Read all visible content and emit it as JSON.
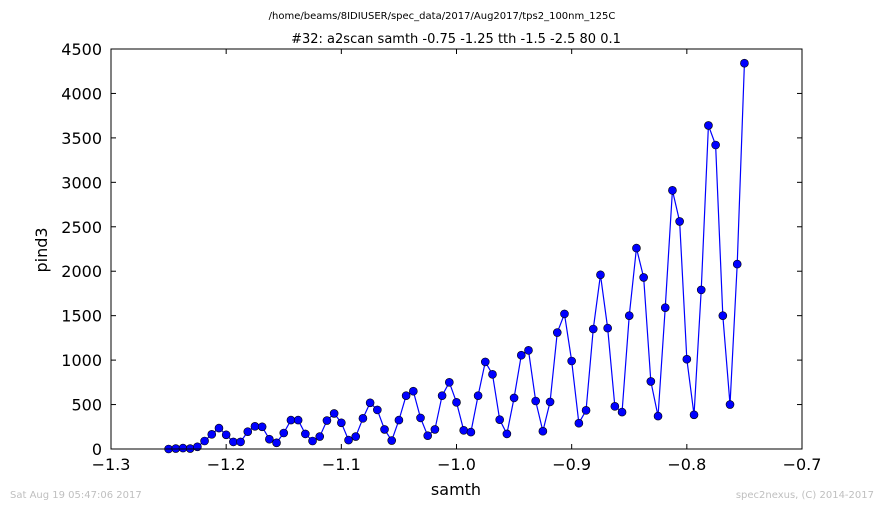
{
  "chart_data": {
    "type": "line",
    "suptitle": "/home/beams/8IDIUSER/spec_data/2017/Aug2017/tps2_100nm_125C",
    "title": "#32: a2scan  samth -0.75 -1.25  tth -1.5 -2.5  80 0.1",
    "xlabel": "samth",
    "ylabel": "pind3",
    "xlim": [
      -1.3,
      -0.7
    ],
    "ylim": [
      0,
      4500
    ],
    "xticks": [
      -1.3,
      -1.2,
      -1.1,
      -1.0,
      -0.9,
      -0.8,
      -0.7
    ],
    "xtick_labels": [
      "−1.3",
      "−1.2",
      "−1.1",
      "−1.0",
      "−0.9",
      "−0.8",
      "−0.7"
    ],
    "yticks": [
      0,
      500,
      1000,
      1500,
      2000,
      2500,
      3000,
      3500,
      4000,
      4500
    ],
    "ytick_labels": [
      "0",
      "500",
      "1000",
      "1500",
      "2000",
      "2500",
      "3000",
      "3500",
      "4000",
      "4500"
    ],
    "grid": false,
    "series_color": "#0000ff",
    "series": [
      {
        "x": [
          -1.25,
          -1.24375,
          -1.2375,
          -1.23125,
          -1.225,
          -1.21875,
          -1.2125,
          -1.20625,
          -1.2,
          -1.19375,
          -1.1875,
          -1.18125,
          -1.175,
          -1.16875,
          -1.1625,
          -1.15625,
          -1.15,
          -1.14375,
          -1.1375,
          -1.13125,
          -1.125,
          -1.11875,
          -1.1125,
          -1.10625,
          -1.1,
          -1.09375,
          -1.0875,
          -1.08125,
          -1.075,
          -1.06875,
          -1.0625,
          -1.05625,
          -1.05,
          -1.04375,
          -1.0375,
          -1.03125,
          -1.025,
          -1.01875,
          -1.0125,
          -1.00625,
          -1.0,
          -0.99375,
          -0.9875,
          -0.98125,
          -0.975,
          -0.96875,
          -0.9625,
          -0.95625,
          -0.95,
          -0.94375,
          -0.9375,
          -0.93125,
          -0.925,
          -0.91875,
          -0.9125,
          -0.90625,
          -0.9,
          -0.89375,
          -0.8875,
          -0.88125,
          -0.875,
          -0.86875,
          -0.8625,
          -0.85625,
          -0.85,
          -0.84375,
          -0.8375,
          -0.83125,
          -0.825,
          -0.81875,
          -0.8125,
          -0.80625,
          -0.8,
          -0.79375,
          -0.7875,
          -0.78125,
          -0.775,
          -0.76875,
          -0.7625,
          -0.75625,
          -0.75
        ],
        "y": [
          0,
          5,
          10,
          5,
          25,
          90,
          165,
          235,
          160,
          80,
          80,
          195,
          255,
          250,
          110,
          70,
          180,
          325,
          325,
          170,
          90,
          140,
          320,
          400,
          295,
          100,
          140,
          345,
          520,
          440,
          220,
          95,
          325,
          600,
          650,
          350,
          150,
          220,
          600,
          750,
          525,
          210,
          190,
          600,
          980,
          840,
          330,
          170,
          575,
          1055,
          1110,
          540,
          200,
          530,
          1310,
          1520,
          990,
          290,
          435,
          1350,
          1960,
          1360,
          480,
          415,
          1500,
          2260,
          1930,
          760,
          370,
          1590,
          2910,
          2560,
          1010,
          385,
          1790,
          3640,
          3420,
          1500,
          500,
          2080,
          4340
        ]
      }
    ]
  },
  "footer": {
    "left": "Sat Aug 19 05:47:06 2017",
    "right": "spec2nexus, (C) 2014-2017"
  }
}
